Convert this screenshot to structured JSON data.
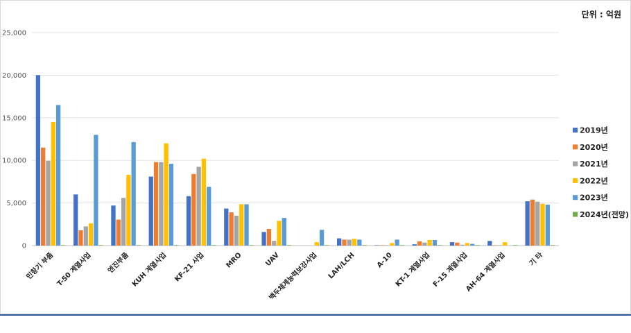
{
  "unit_label": "단위 : 억원",
  "colors": [
    "#4472c4",
    "#ed7d31",
    "#a5a5a5",
    "#ffc000",
    "#5b9bd5",
    "#70ad47"
  ],
  "chart_data": {
    "type": "bar",
    "categories": [
      "민항기 부품",
      "T-50 계열사업",
      "엔진부품",
      "KUH 계열사업",
      "KF-21 사업",
      "MRO",
      "UAV",
      "백두체계능력보강사업",
      "LAH/LCH",
      "A-10",
      "KT-1 계열사업",
      "F-15 계열사업",
      "AH-64 계열사업",
      "기 타"
    ],
    "series": [
      {
        "name": "2019년",
        "values": [
          20000,
          6000,
          4700,
          8100,
          5800,
          4350,
          1600,
          0,
          850,
          50,
          150,
          400,
          550,
          5200
        ]
      },
      {
        "name": "2020년",
        "values": [
          11500,
          1800,
          3050,
          9800,
          8400,
          3900,
          1950,
          0,
          700,
          50,
          500,
          350,
          50,
          5400
        ]
      },
      {
        "name": "2021년",
        "values": [
          9950,
          2250,
          5600,
          9800,
          9250,
          3500,
          550,
          0,
          700,
          50,
          350,
          100,
          50,
          5150
        ]
      },
      {
        "name": "2022년",
        "values": [
          14500,
          2600,
          8300,
          12000,
          10200,
          4850,
          2900,
          400,
          800,
          300,
          650,
          300,
          400,
          4900
        ]
      },
      {
        "name": "2023년",
        "values": [
          16500,
          13000,
          12150,
          9600,
          6900,
          4850,
          3250,
          1850,
          700,
          700,
          650,
          200,
          0,
          4800
        ]
      },
      {
        "name": "2024년(전망)",
        "values": [
          60,
          60,
          60,
          60,
          60,
          60,
          60,
          60,
          60,
          60,
          60,
          60,
          60,
          60
        ]
      }
    ],
    "yticks": [
      0,
      5000,
      10000,
      15000,
      20000,
      25000
    ],
    "ytick_labels": [
      "0",
      "5,000",
      "10,000",
      "15,000",
      "20,000",
      "25,000"
    ],
    "ylim": [
      0,
      25000
    ],
    "legend": "right",
    "grid": true
  }
}
